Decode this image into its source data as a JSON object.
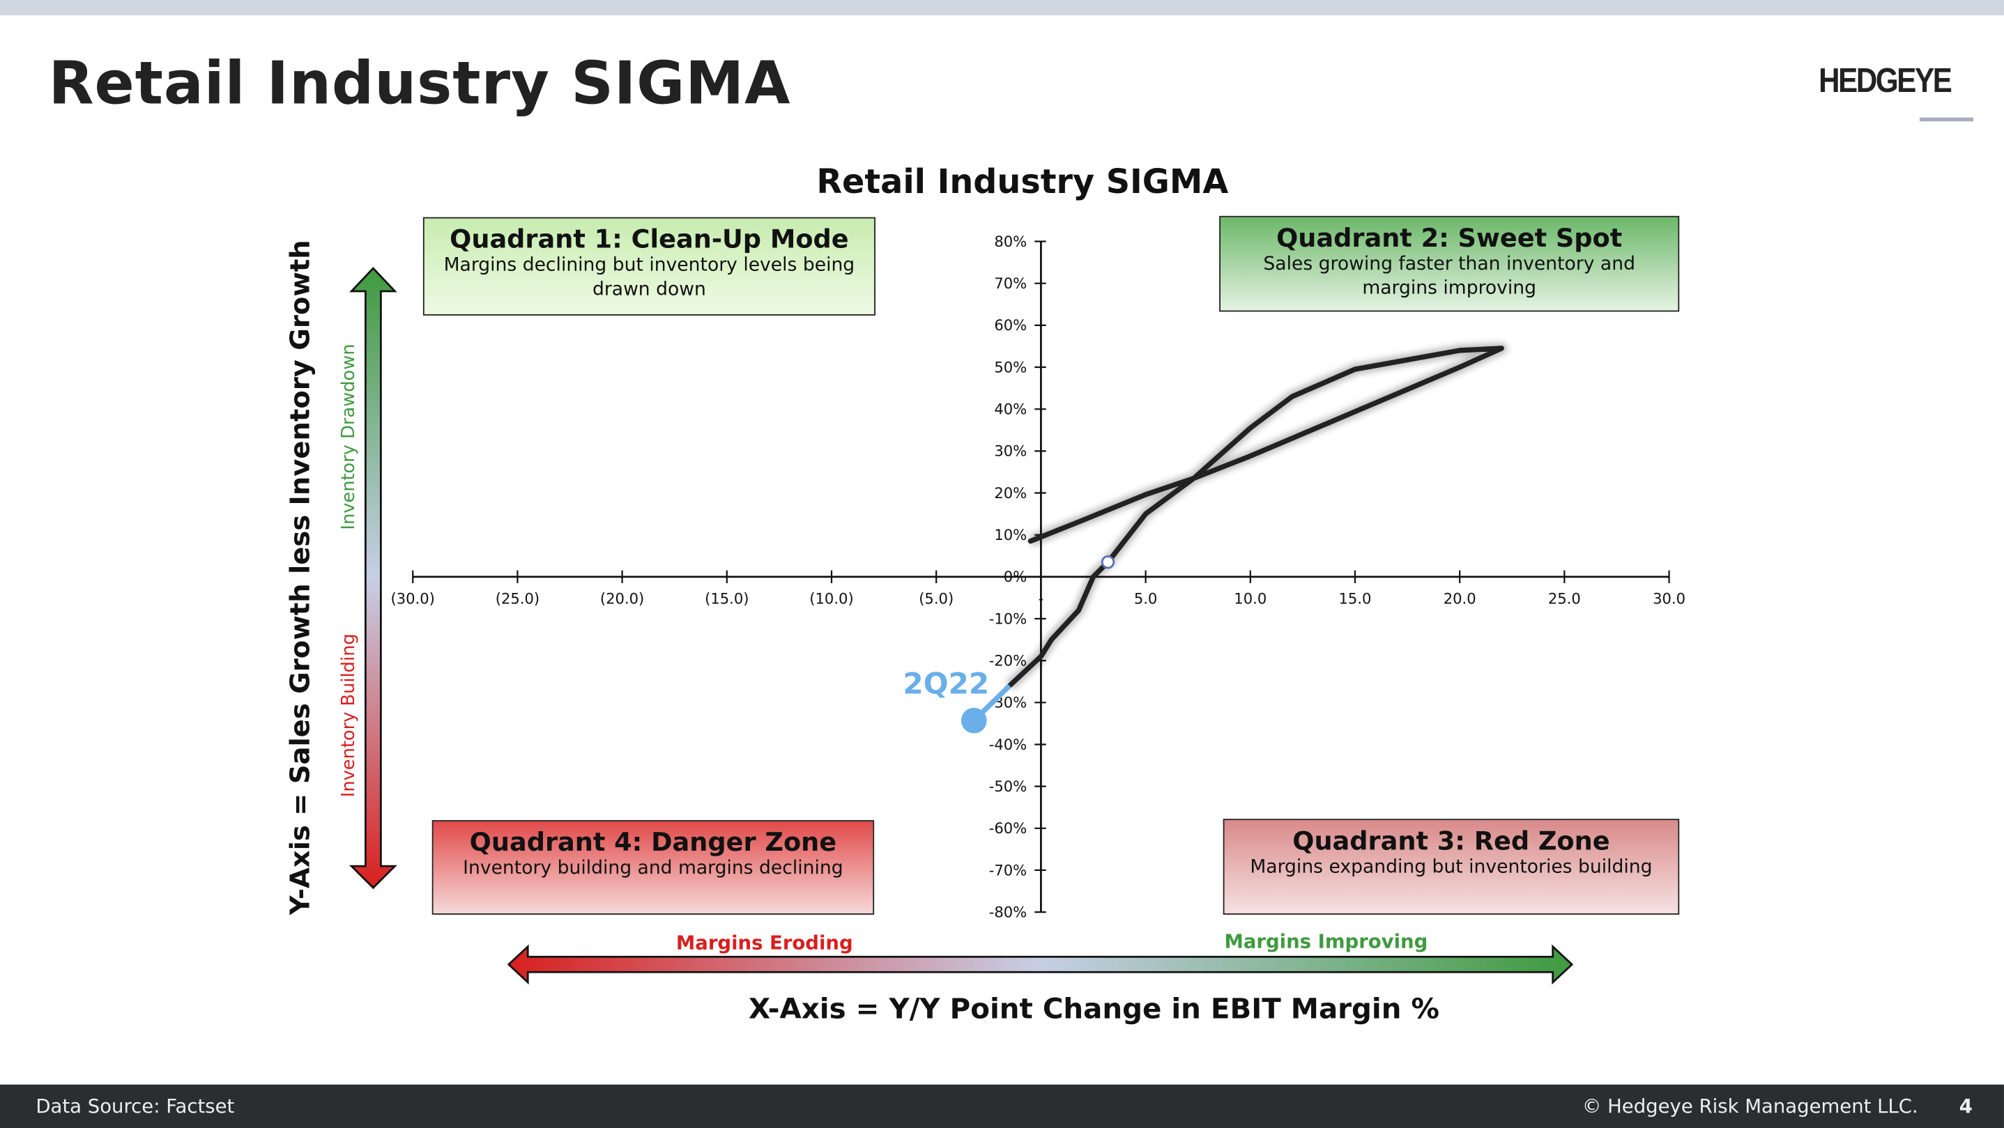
{
  "header": {
    "title": "Retail Industry SIGMA",
    "logo": "HEDGEYE"
  },
  "quadrants": [
    {
      "title": "Quadrant 1: Clean-Up Mode",
      "desc": "Margins declining but inventory levels being drawn down",
      "color": "#c8ecb0"
    },
    {
      "title": "Quadrant 2: Sweet Spot",
      "desc": "Sales growing faster than inventory and margins improving",
      "color": "#6cb86a"
    },
    {
      "title": "Quadrant 3: Red Zone",
      "desc": "Margins expanding but inventories building",
      "color": "#d98a8a"
    },
    {
      "title": "Quadrant 4: Danger Zone",
      "desc": "Inventory building and margins declining",
      "color": "#e14b4b"
    }
  ],
  "arrows": {
    "inventory_drawdown": "Inventory Drawdown",
    "inventory_building": "Inventory Building",
    "margins_eroding": "Margins Eroding",
    "margins_improving": "Margins Improving"
  },
  "footer": {
    "source": "Data Source: Factset",
    "copyright": "© Hedgeye Risk Management LLC.",
    "page": "4"
  },
  "chart_data": {
    "type": "line",
    "title": "Retail Industry SIGMA",
    "xlabel": "X-Axis = Y/Y Point Change in EBIT Margin %",
    "ylabel": "Y-Axis = Sales Growth less Inventory Growth",
    "xlim": [
      -30,
      30
    ],
    "ylim": [
      -80,
      80
    ],
    "xticks": [
      "(30.0)",
      "(25.0)",
      "(20.0)",
      "(15.0)",
      "(10.0)",
      "(5.0)",
      "-",
      "5.0",
      "10.0",
      "15.0",
      "20.0",
      "25.0",
      "30.0"
    ],
    "yticks": [
      "80%",
      "70%",
      "60%",
      "50%",
      "40%",
      "30%",
      "20%",
      "10%",
      "0%",
      "-10%",
      "-20%",
      "-30%",
      "-40%",
      "-50%",
      "-60%",
      "-70%",
      "-80%"
    ],
    "grid": false,
    "series": [
      {
        "color": "#222222",
        "points": [
          [
            -0.5,
            8.5
          ],
          [
            2,
            13.5
          ],
          [
            5,
            19.6
          ],
          [
            7.3,
            23.5
          ],
          [
            10,
            28.8
          ],
          [
            15,
            39.4
          ],
          [
            20,
            50
          ],
          [
            22,
            54.5
          ],
          [
            20,
            54
          ],
          [
            15,
            49.5
          ],
          [
            12,
            43
          ],
          [
            10,
            35.5
          ],
          [
            7.3,
            23.5
          ],
          [
            5,
            15
          ],
          [
            3.2,
            3.5
          ],
          [
            2.5,
            0
          ],
          [
            1.8,
            -8
          ],
          [
            0.5,
            -15
          ],
          [
            0,
            -19
          ],
          [
            -1.5,
            -26
          ],
          [
            -3.2,
            -34.3
          ]
        ]
      }
    ],
    "highlight": {
      "label": "2Q22",
      "x": -3.2,
      "y": -34.3,
      "color": "#6aaeea"
    },
    "marker_hollow": {
      "x": 3.2,
      "y": 3.5
    }
  }
}
